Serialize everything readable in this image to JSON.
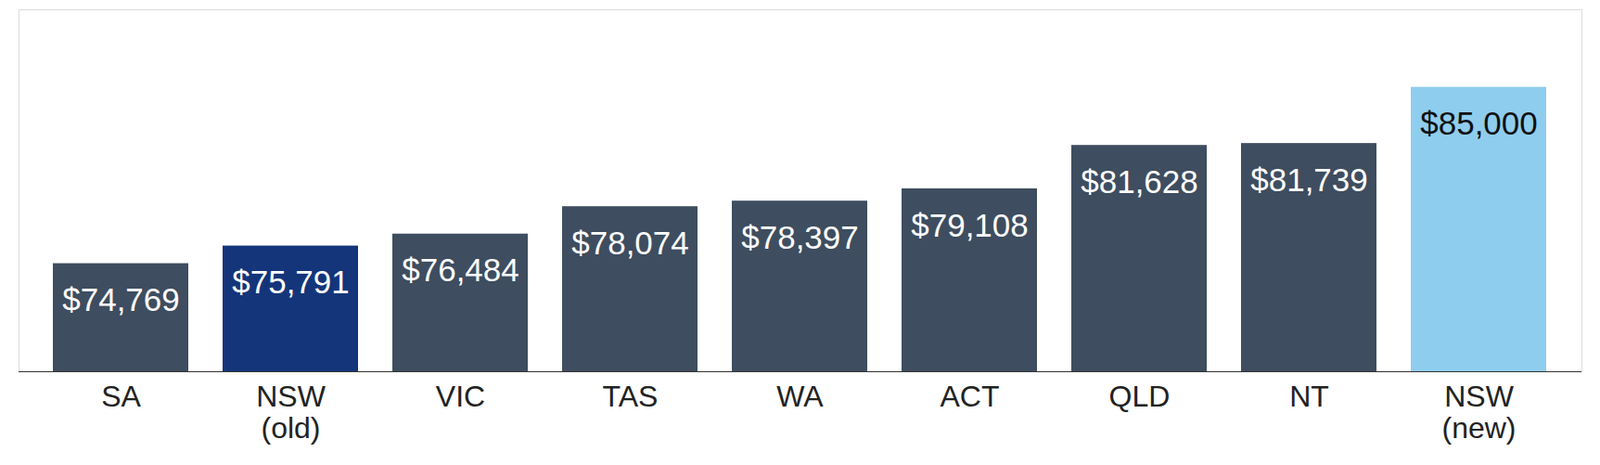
{
  "chart_data": {
    "type": "bar",
    "categories": [
      "SA",
      "NSW\n(old)",
      "VIC",
      "TAS",
      "WA",
      "ACT",
      "QLD",
      "NT",
      "NSW\n(new)"
    ],
    "values": [
      74769,
      75791,
      76484,
      78074,
      78397,
      79108,
      81628,
      81739,
      85000
    ],
    "value_labels": [
      "$74,769",
      "$75,791",
      "$76,484",
      "$78,074",
      "$78,397",
      "$79,108",
      "$81,628",
      "$81,739",
      "$85,000"
    ],
    "colors": [
      "#3e4d5f",
      "#14357a",
      "#3e4d5f",
      "#3e4d5f",
      "#3e4d5f",
      "#3e4d5f",
      "#3e4d5f",
      "#3e4d5f",
      "#8fcdef"
    ],
    "ylim": [
      68500,
      89500
    ],
    "data_labels": true,
    "tick_labels": "x"
  }
}
